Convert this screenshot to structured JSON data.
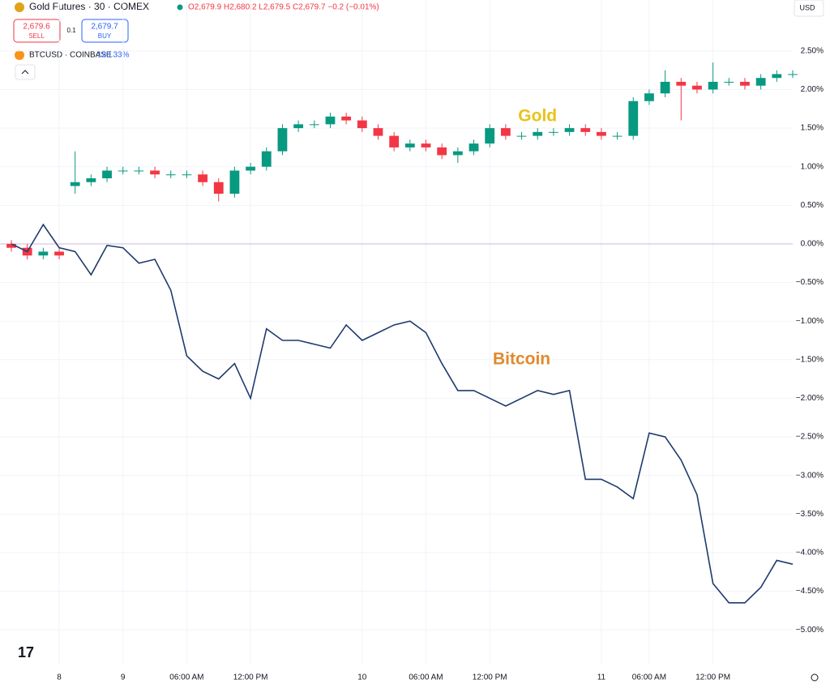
{
  "header": {
    "symbol": "Gold Futures · 30 · COMEX",
    "ohlc": "O2,679.9 H2,680.2 L2,679.5 C2,679.7 −0.2 (−0.01%)",
    "sell_price": "2,679.6",
    "sell": "SELL",
    "spread": "0.1",
    "buy_price": "2,679.7",
    "buy": "BUY",
    "compare_change": "120.33%",
    "currency": "USD"
  },
  "chart_data": {
    "type": "candlestick",
    "categories": [
      null,
      null,
      null,
      "8",
      null,
      null,
      null,
      "9",
      null,
      null,
      null,
      "06:00 AM",
      null,
      null,
      null,
      "12:00 PM",
      null,
      null,
      null,
      null,
      null,
      null,
      "10",
      null,
      null,
      null,
      "06:00 AM",
      null,
      null,
      null,
      "12:00 PM",
      null,
      null,
      null,
      null,
      null,
      null,
      "11",
      null,
      null,
      "06:00 AM",
      null,
      null,
      null,
      "12:00 PM",
      null,
      null,
      null,
      null,
      null
    ],
    "ylim": [
      -5.45,
      3.16
    ],
    "yticks": [
      {
        "value": 2.5,
        "label": "2.50%"
      },
      {
        "value": 2.0,
        "label": "2.00%"
      },
      {
        "value": 1.5,
        "label": "1.50%"
      },
      {
        "value": 1.0,
        "label": "1.00%"
      },
      {
        "value": 0.5,
        "label": "0.50%"
      },
      {
        "value": 0,
        "label": "0.00%"
      },
      {
        "value": -0.5,
        "label": "−0.50%"
      },
      {
        "value": -1.0,
        "label": "−1.00%"
      },
      {
        "value": -1.5,
        "label": "−1.50%"
      },
      {
        "value": -2.0,
        "label": "−2.00%"
      },
      {
        "value": -2.5,
        "label": "−2.50%"
      },
      {
        "value": -3.0,
        "label": "−3.00%"
      },
      {
        "value": -3.5,
        "label": "−3.50%"
      },
      {
        "value": -4.0,
        "label": "−4.00%"
      },
      {
        "value": -4.5,
        "label": "−4.50%"
      },
      {
        "value": -5.0,
        "label": "−5.00%"
      }
    ],
    "grid": true,
    "annotations": [
      {
        "text": "Gold",
        "color": "#e8c21a",
        "at": [
          33,
          1.65
        ]
      },
      {
        "text": "Bitcoin",
        "color": "#e08a2b",
        "at": [
          32,
          -1.5
        ]
      }
    ],
    "series": [
      {
        "name": "Gold Futures · 30 · COMEX",
        "type": "candlestick",
        "up_color": "#089981",
        "down_color": "#f23645",
        "open": [
          0,
          -0.05,
          -0.15,
          -0.1,
          0.75,
          0.8,
          0.85,
          0.95,
          0.95,
          0.95,
          0.9,
          0.9,
          0.9,
          0.8,
          0.65,
          0.95,
          1.0,
          1.2,
          1.5,
          1.55,
          1.55,
          1.65,
          1.6,
          1.5,
          1.4,
          1.25,
          1.3,
          1.25,
          1.15,
          1.2,
          1.3,
          1.5,
          1.4,
          1.4,
          1.45,
          1.45,
          1.5,
          1.45,
          1.4,
          1.4,
          1.85,
          1.95,
          2.1,
          2.05,
          2.0,
          2.1,
          2.1,
          2.05,
          2.15,
          2.2
        ],
        "high": [
          0.05,
          0,
          -0.05,
          -0.05,
          1.2,
          0.9,
          1.0,
          1.0,
          1.0,
          1.0,
          0.95,
          0.95,
          0.95,
          0.85,
          1.0,
          1.05,
          1.25,
          1.55,
          1.6,
          1.6,
          1.7,
          1.7,
          1.65,
          1.55,
          1.45,
          1.35,
          1.35,
          1.3,
          1.25,
          1.35,
          1.55,
          1.55,
          1.45,
          1.5,
          1.5,
          1.55,
          1.55,
          1.5,
          1.45,
          1.9,
          2.0,
          2.25,
          2.15,
          2.1,
          2.35,
          2.15,
          2.15,
          2.2,
          2.25,
          2.25
        ],
        "low": [
          -0.1,
          -0.2,
          -0.2,
          -0.2,
          0.65,
          0.75,
          0.8,
          0.9,
          0.9,
          0.85,
          0.85,
          0.85,
          0.75,
          0.55,
          0.6,
          0.9,
          0.95,
          1.15,
          1.45,
          1.5,
          1.5,
          1.55,
          1.45,
          1.35,
          1.2,
          1.2,
          1.2,
          1.1,
          1.05,
          1.15,
          1.25,
          1.35,
          1.35,
          1.35,
          1.4,
          1.4,
          1.4,
          1.35,
          1.35,
          1.35,
          1.8,
          1.9,
          1.6,
          1.95,
          1.95,
          2.05,
          2.0,
          2.0,
          2.1,
          2.15
        ],
        "close": [
          -0.05,
          -0.15,
          -0.1,
          -0.15,
          0.8,
          0.85,
          0.95,
          0.95,
          0.95,
          0.9,
          0.9,
          0.9,
          0.8,
          0.65,
          0.95,
          1.0,
          1.2,
          1.5,
          1.55,
          1.55,
          1.65,
          1.6,
          1.5,
          1.4,
          1.25,
          1.3,
          1.25,
          1.15,
          1.2,
          1.3,
          1.5,
          1.4,
          1.4,
          1.45,
          1.45,
          1.5,
          1.45,
          1.4,
          1.4,
          1.85,
          1.95,
          2.1,
          2.05,
          2.0,
          2.1,
          2.1,
          2.05,
          2.15,
          2.2,
          2.2
        ]
      },
      {
        "name": "BTCUSD · COINBASE",
        "type": "line",
        "color": "#1e3a6e",
        "values": [
          0,
          -0.1,
          0.25,
          -0.05,
          -0.1,
          -0.4,
          -0.02,
          -0.05,
          -0.25,
          -0.2,
          -0.6,
          -1.45,
          -1.65,
          -1.75,
          -1.55,
          -2.0,
          -1.1,
          -1.25,
          -1.25,
          -1.3,
          -1.35,
          -1.05,
          -1.25,
          -1.15,
          -1.05,
          -1.0,
          -1.15,
          -1.55,
          -1.9,
          -1.9,
          -2.0,
          -2.1,
          -2.0,
          -1.9,
          -1.95,
          -1.9,
          -3.05,
          -3.05,
          -3.15,
          -3.3,
          -2.45,
          -2.5,
          -2.8,
          -3.25,
          -4.4,
          -4.65,
          -4.65,
          -4.45,
          -4.1,
          -4.15
        ]
      }
    ]
  }
}
